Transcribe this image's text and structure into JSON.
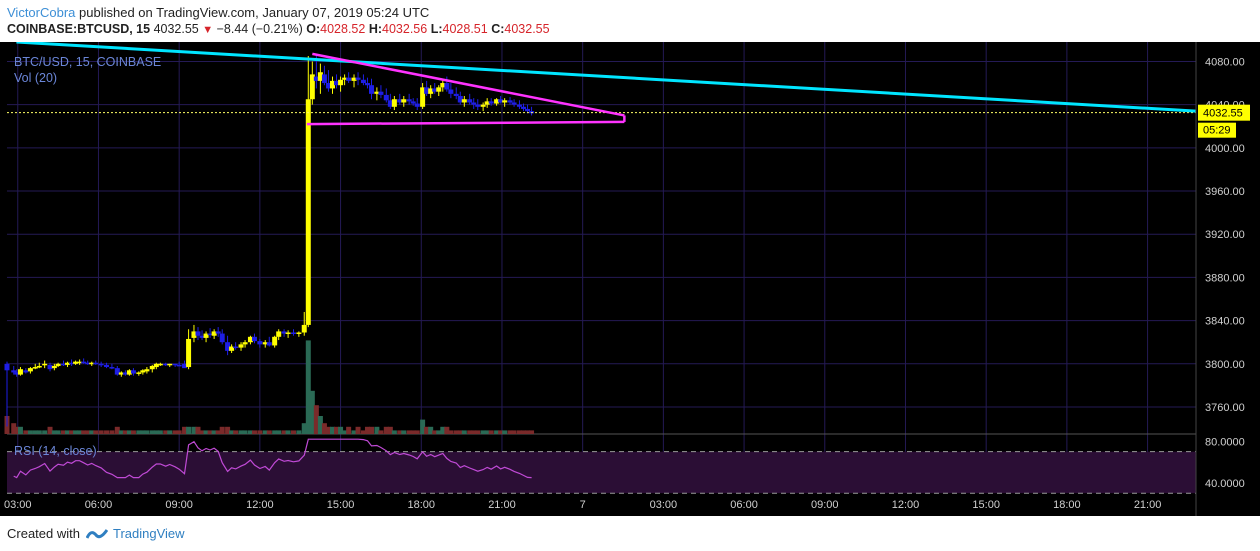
{
  "header": {
    "author": "VictorCobra",
    "published_text": "published on TradingView.com, January 07, 2019 05:24 UTC",
    "symbol_line": "COINBASE:BTCUSD, 15",
    "price": "4032.55",
    "change": "−8.44 (−0.21%)",
    "o_label": "O:",
    "o_val": "4028.52",
    "h_label": "H:",
    "h_val": "4032.56",
    "l_label": "L:",
    "l_val": "4028.51",
    "c_label": "C:",
    "c_val": "4032.55"
  },
  "footer": {
    "created_with": "Created with",
    "brand": "TradingView"
  },
  "colors": {
    "background": "#000000",
    "grid": "#241a55",
    "up_candle": "#ffff00",
    "down_candle": "#1e1ee6",
    "vol_up": "#2a6a55",
    "vol_down": "#7a2a2a",
    "trendline": "#00e5ff",
    "triangle": "#ff33ff",
    "rsi_line": "#c04ad6",
    "rsi_band": "#2b0e35",
    "price_tag_bg": "#ffff00",
    "axis_text": "#d0d0d0",
    "legend_text": "#6b86d8"
  },
  "chart_data": {
    "type": "candlestick",
    "title": "BTC/USD, 15, COINBASE",
    "volume_label": "Vol (20)",
    "rsi_label": "RSI (14, close)",
    "last_price": 4032.55,
    "last_price_label": "4032.55",
    "countdown": "05:29",
    "ylim": [
      3735,
      4098
    ],
    "y_ticks": [
      3760,
      3800,
      3840,
      3880,
      3920,
      3960,
      4000,
      4040,
      4080
    ],
    "y_tick_labels": [
      "3760.00",
      "3800.00",
      "3840.00",
      "3880.00",
      "3920.00",
      "3960.00",
      "4000.00",
      "4040.00",
      "4080.00"
    ],
    "rsi_ylim": [
      35,
      87
    ],
    "rsi_ticks": [
      40,
      80
    ],
    "rsi_tick_labels": [
      "40.0000",
      "80.0000"
    ],
    "rsi_bands": [
      70,
      30
    ],
    "x_ticks": [
      2,
      5,
      8,
      11,
      14,
      17,
      20,
      23,
      26,
      29,
      32,
      35,
      38,
      41,
      44
    ],
    "x_tick_labels": [
      "03:00",
      "06:00",
      "09:00",
      "12:00",
      "15:00",
      "18:00",
      "21:00",
      "7",
      "03:00",
      "06:00",
      "09:00",
      "12:00",
      "15:00",
      "18:00",
      "21:00"
    ],
    "x_range": [
      1.6,
      45.8
    ],
    "candles": [
      [
        1.6,
        3800,
        3802,
        3742,
        3794,
        5
      ],
      [
        1.85,
        3794,
        3798,
        3790,
        3792,
        3
      ],
      [
        1.96,
        3792,
        3795,
        3788,
        3790,
        2
      ],
      [
        2.1,
        3790,
        3797,
        3789,
        3795,
        2
      ],
      [
        2.3,
        3794,
        3796,
        3791,
        3792,
        1
      ],
      [
        2.47,
        3793,
        3797,
        3791,
        3796,
        1
      ],
      [
        2.65,
        3796,
        3800,
        3795,
        3797,
        1
      ],
      [
        2.8,
        3797,
        3801,
        3796,
        3798,
        1
      ],
      [
        3.0,
        3799,
        3803,
        3796,
        3800,
        1
      ],
      [
        3.2,
        3799,
        3801,
        3793,
        3795,
        2
      ],
      [
        3.36,
        3796,
        3800,
        3794,
        3798,
        1
      ],
      [
        3.5,
        3798,
        3801,
        3797,
        3800,
        1
      ],
      [
        3.7,
        3800,
        3803,
        3798,
        3799,
        1
      ],
      [
        3.85,
        3799,
        3802,
        3797,
        3801,
        1
      ],
      [
        4.0,
        3801,
        3804,
        3798,
        3800,
        1
      ],
      [
        4.15,
        3800,
        3803,
        3799,
        3802,
        1
      ],
      [
        4.3,
        3801,
        3804,
        3799,
        3802,
        1
      ],
      [
        4.45,
        3802,
        3805,
        3800,
        3801,
        1
      ],
      [
        4.6,
        3801,
        3803,
        3799,
        3800,
        1
      ],
      [
        4.75,
        3800,
        3802,
        3798,
        3801,
        1
      ],
      [
        4.9,
        3801,
        3803,
        3799,
        3800,
        1
      ],
      [
        5.1,
        3800,
        3802,
        3797,
        3799,
        1
      ],
      [
        5.3,
        3799,
        3801,
        3796,
        3797,
        1
      ],
      [
        5.5,
        3797,
        3800,
        3795,
        3796,
        1
      ],
      [
        5.7,
        3796,
        3798,
        3789,
        3790,
        2
      ],
      [
        5.85,
        3790,
        3793,
        3788,
        3792,
        1
      ],
      [
        6.0,
        3792,
        3794,
        3789,
        3790,
        1
      ],
      [
        6.15,
        3790,
        3795,
        3789,
        3794,
        1
      ],
      [
        6.3,
        3794,
        3796,
        3789,
        3791,
        1
      ],
      [
        6.5,
        3791,
        3793,
        3789,
        3792,
        1
      ],
      [
        6.65,
        3792,
        3795,
        3790,
        3794,
        1
      ],
      [
        6.8,
        3793,
        3797,
        3791,
        3795,
        1
      ],
      [
        7.0,
        3795,
        3799,
        3792,
        3798,
        1
      ],
      [
        7.15,
        3797,
        3801,
        3795,
        3800,
        1
      ],
      [
        7.3,
        3799,
        3801,
        3798,
        3800,
        1
      ],
      [
        7.5,
        3800,
        3801,
        3798,
        3799,
        1
      ],
      [
        7.65,
        3799,
        3800,
        3797,
        3800,
        1
      ],
      [
        7.85,
        3800,
        3800,
        3797,
        3799,
        1
      ],
      [
        8.0,
        3799,
        3802,
        3798,
        3798,
        1
      ],
      [
        8.2,
        3800,
        3803,
        3797,
        3796,
        2
      ],
      [
        8.35,
        3797,
        3832,
        3795,
        3823,
        2
      ],
      [
        8.55,
        3824,
        3836,
        3820,
        3830,
        2
      ],
      [
        8.7,
        3830,
        3834,
        3822,
        3826,
        2
      ],
      [
        8.85,
        3826,
        3831,
        3822,
        3824,
        1
      ],
      [
        9.0,
        3824,
        3830,
        3820,
        3828,
        1
      ],
      [
        9.15,
        3828,
        3833,
        3824,
        3827,
        1
      ],
      [
        9.3,
        3826,
        3832,
        3823,
        3830,
        1
      ],
      [
        9.45,
        3830,
        3834,
        3825,
        3828,
        1
      ],
      [
        9.6,
        3828,
        3832,
        3818,
        3820,
        2
      ],
      [
        9.8,
        3820,
        3826,
        3808,
        3812,
        2
      ],
      [
        9.95,
        3812,
        3818,
        3810,
        3816,
        1
      ],
      [
        10.1,
        3816,
        3820,
        3813,
        3815,
        1
      ],
      [
        10.3,
        3815,
        3820,
        3812,
        3818,
        1
      ],
      [
        10.45,
        3818,
        3822,
        3815,
        3820,
        1
      ],
      [
        10.65,
        3820,
        3826,
        3818,
        3825,
        1
      ],
      [
        10.8,
        3825,
        3828,
        3819,
        3821,
        1
      ],
      [
        11.0,
        3821,
        3823,
        3815,
        3818,
        1
      ],
      [
        11.2,
        3818,
        3822,
        3815,
        3820,
        1
      ],
      [
        11.35,
        3820,
        3825,
        3816,
        3817,
        1
      ],
      [
        11.55,
        3817,
        3826,
        3815,
        3825,
        1
      ],
      [
        11.7,
        3825,
        3832,
        3822,
        3830,
        1
      ],
      [
        11.9,
        3830,
        3832,
        3825,
        3828,
        1
      ],
      [
        12.05,
        3828,
        3831,
        3824,
        3829,
        1
      ],
      [
        12.25,
        3829,
        3832,
        3826,
        3828,
        1
      ],
      [
        12.45,
        3828,
        3830,
        3825,
        3829,
        1
      ],
      [
        12.65,
        3829,
        3848,
        3826,
        3836,
        3
      ],
      [
        12.8,
        3836,
        4085,
        3834,
        4045,
        26
      ],
      [
        12.95,
        4045,
        4080,
        4040,
        4068,
        12
      ],
      [
        13.1,
        4066,
        4085,
        4055,
        4062,
        8
      ],
      [
        13.25,
        4062,
        4078,
        4050,
        4070,
        5
      ],
      [
        13.4,
        4068,
        4076,
        4058,
        4060,
        3
      ],
      [
        13.55,
        4060,
        4072,
        4052,
        4055,
        2
      ],
      [
        13.7,
        4055,
        4066,
        4050,
        4062,
        2
      ],
      [
        13.85,
        4062,
        4068,
        4055,
        4058,
        2
      ],
      [
        14.0,
        4058,
        4066,
        4052,
        4063,
        2
      ],
      [
        14.15,
        4063,
        4068,
        4058,
        4065,
        1
      ],
      [
        14.3,
        4065,
        4070,
        4060,
        4062,
        2
      ],
      [
        14.5,
        4062,
        4068,
        4056,
        4065,
        1
      ],
      [
        14.65,
        4065,
        4070,
        4058,
        4063,
        2
      ],
      [
        14.85,
        4063,
        4068,
        4058,
        4060,
        1
      ],
      [
        15.0,
        4060,
        4065,
        4055,
        4058,
        2
      ],
      [
        15.15,
        4058,
        4064,
        4045,
        4050,
        2
      ],
      [
        15.35,
        4050,
        4056,
        4044,
        4052,
        2
      ],
      [
        15.5,
        4052,
        4058,
        4046,
        4049,
        1
      ],
      [
        15.7,
        4049,
        4055,
        4042,
        4044,
        2
      ],
      [
        15.85,
        4044,
        4050,
        4036,
        4038,
        2
      ],
      [
        16.0,
        4038,
        4048,
        4035,
        4045,
        1
      ],
      [
        16.2,
        4045,
        4050,
        4040,
        4042,
        1
      ],
      [
        16.35,
        4042,
        4048,
        4038,
        4045,
        1
      ],
      [
        16.55,
        4045,
        4050,
        4040,
        4043,
        1
      ],
      [
        16.7,
        4043,
        4046,
        4039,
        4041,
        1
      ],
      [
        16.85,
        4041,
        4046,
        4035,
        4038,
        1
      ],
      [
        17.05,
        4038,
        4060,
        4036,
        4056,
        4
      ],
      [
        17.2,
        4056,
        4062,
        4048,
        4050,
        2
      ],
      [
        17.35,
        4050,
        4058,
        4046,
        4055,
        2
      ],
      [
        17.5,
        4055,
        4060,
        4050,
        4052,
        1
      ],
      [
        17.65,
        4052,
        4058,
        4048,
        4056,
        1
      ],
      [
        17.8,
        4056,
        4064,
        4052,
        4060,
        2
      ],
      [
        17.95,
        4060,
        4066,
        4052,
        4054,
        2
      ],
      [
        18.1,
        4054,
        4060,
        4046,
        4050,
        1
      ],
      [
        18.3,
        4050,
        4056,
        4045,
        4048,
        1
      ],
      [
        18.45,
        4048,
        4052,
        4040,
        4042,
        1
      ],
      [
        18.6,
        4042,
        4048,
        4038,
        4045,
        1
      ],
      [
        18.8,
        4045,
        4050,
        4040,
        4042,
        1
      ],
      [
        18.95,
        4042,
        4046,
        4036,
        4040,
        1
      ],
      [
        19.1,
        4040,
        4045,
        4035,
        4038,
        1
      ],
      [
        19.3,
        4038,
        4042,
        4034,
        4040,
        1
      ],
      [
        19.45,
        4040,
        4046,
        4037,
        4043,
        1
      ],
      [
        19.6,
        4043,
        4046,
        4039,
        4041,
        1
      ],
      [
        19.8,
        4041,
        4046,
        4039,
        4045,
        1
      ],
      [
        19.95,
        4045,
        4048,
        4041,
        4042,
        1
      ],
      [
        20.1,
        4042,
        4046,
        4038,
        4044,
        1
      ],
      [
        20.3,
        4044,
        4047,
        4040,
        4042,
        1
      ],
      [
        20.45,
        4042,
        4045,
        4038,
        4040,
        1
      ],
      [
        20.65,
        4040,
        4044,
        4036,
        4038,
        1
      ],
      [
        20.8,
        4038,
        4041,
        4034,
        4036,
        1
      ],
      [
        20.95,
        4036,
        4040,
        4032,
        4034,
        1
      ],
      [
        21.1,
        4034,
        4038,
        4030,
        4032,
        1
      ]
    ]
  }
}
